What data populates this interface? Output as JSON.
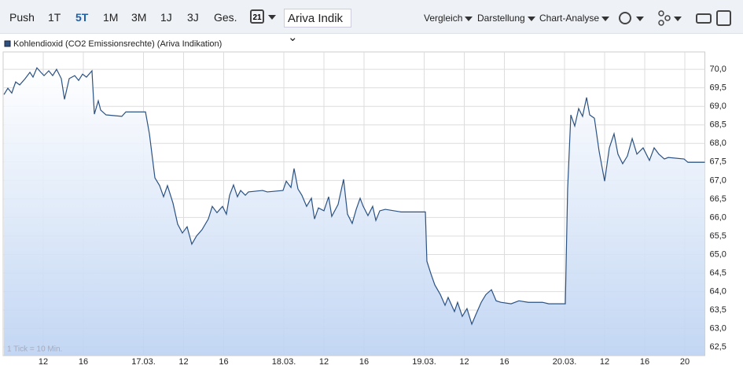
{
  "toolbar": {
    "ranges": [
      "Push",
      "1T",
      "5T",
      "1M",
      "3M",
      "1J",
      "3J",
      "Ges."
    ],
    "active_range": "5T",
    "calendar": "21",
    "source": "Ariva Indik",
    "menus": [
      "Vergleich",
      "Darstellung",
      "Chart-Analyse"
    ]
  },
  "chart_data": {
    "type": "line",
    "annotation": "1 Tick = 10 Min.",
    "x": [
      0.08,
      0.47,
      0.86,
      1.25,
      1.65,
      2.2,
      2.67,
      2.98,
      3.37,
      3.76,
      4.08,
      4.55,
      4.94,
      5.33,
      5.8,
      6.12,
      6.59,
      7.14,
      7.53,
      7.92,
      8.31,
      8.86,
      9.1,
      9.49,
      9.73,
      10.27,
      11.84,
      12.24,
      14.2,
      14.59,
      15.14,
      15.61,
      16,
      16.39,
      16.94,
      17.41,
      17.88,
      18.35,
      18.82,
      19.29,
      19.84,
      20.47,
      20.86,
      21.33,
      21.88,
      22.27,
      22.59,
      22.98,
      23.37,
      23.69,
      24.16,
      24.47,
      25.88,
      26.35,
      27.92,
      28.24,
      28.71,
      29.02,
      29.41,
      29.8,
      30.27,
      30.75,
      31.06,
      31.45,
      32,
      32.47,
      32.78,
      33.41,
      33.96,
      34.35,
      34.82,
      35.22,
      35.61,
      35.92,
      36.39,
      36.86,
      37.18,
      37.57,
      38.12,
      39.69,
      42.12,
      42.27,
      42.67,
      43.06,
      43.61,
      44.08,
      44.39,
      45.02,
      45.33,
      45.8,
      46.27,
      46.75,
      47.14,
      47.69,
      48.16,
      48.71,
      49.18,
      49.65,
      50.67,
      51.45,
      52.39,
      53.8,
      54.43,
      56.08,
      56.31,
      56.63,
      57.02,
      57.41,
      57.8,
      58.2,
      58.51,
      58.98,
      59.45,
      60,
      60.47,
      60.94,
      61.33,
      61.8,
      62.27,
      62.75,
      63.22,
      63.84,
      64.47,
      64.94,
      65.41,
      65.96,
      66.35,
      67.92,
      68.31,
      70
    ],
    "series": [
      {
        "name": "Kohlendioxid (CO2 Emissionsrechte) (Ariva Indikation)",
        "color": "#2b5283",
        "values": [
          69.32,
          69.49,
          69.36,
          69.66,
          69.58,
          69.75,
          69.92,
          69.79,
          70.04,
          69.92,
          69.83,
          69.96,
          69.83,
          70,
          69.75,
          69.19,
          69.75,
          69.83,
          69.7,
          69.87,
          69.79,
          69.96,
          68.79,
          69.15,
          68.9,
          68.77,
          68.73,
          68.85,
          68.85,
          68.26,
          67.07,
          66.86,
          66.56,
          66.86,
          66.39,
          65.82,
          65.58,
          65.75,
          65.28,
          65.5,
          65.67,
          65.96,
          66.3,
          66.13,
          66.3,
          66.09,
          66.6,
          66.88,
          66.56,
          66.73,
          66.6,
          66.69,
          66.73,
          66.69,
          66.73,
          66.98,
          66.81,
          67.32,
          66.77,
          66.6,
          66.3,
          66.52,
          65.96,
          66.26,
          66.18,
          66.56,
          66.03,
          66.35,
          67.03,
          66.09,
          65.84,
          66.22,
          66.52,
          66.3,
          66.05,
          66.3,
          65.92,
          66.18,
          66.22,
          66.15,
          66.15,
          64.82,
          64.48,
          64.18,
          63.92,
          63.63,
          63.84,
          63.46,
          63.71,
          63.33,
          63.54,
          63.12,
          63.37,
          63.71,
          63.92,
          64.05,
          63.75,
          63.71,
          63.67,
          63.75,
          63.71,
          63.71,
          63.67,
          63.67,
          66.77,
          68.77,
          68.47,
          68.94,
          68.73,
          69.24,
          68.77,
          68.68,
          67.79,
          66.98,
          67.88,
          68.26,
          67.71,
          67.45,
          67.66,
          68.13,
          67.71,
          67.88,
          67.54,
          67.88,
          67.71,
          67.58,
          67.62,
          67.58,
          67.49,
          67.49
        ]
      }
    ],
    "xlim": [
      0,
      70
    ],
    "xticks": [
      {
        "value": 4,
        "label": "12"
      },
      {
        "value": 8,
        "label": "16"
      },
      {
        "value": 14,
        "label": "17.03."
      },
      {
        "value": 18,
        "label": "12"
      },
      {
        "value": 22,
        "label": "16"
      },
      {
        "value": 28,
        "label": "18.03."
      },
      {
        "value": 32,
        "label": "12"
      },
      {
        "value": 36,
        "label": "16"
      },
      {
        "value": 42,
        "label": "19.03."
      },
      {
        "value": 46,
        "label": "12"
      },
      {
        "value": 50,
        "label": "16"
      },
      {
        "value": 56,
        "label": "20.03."
      },
      {
        "value": 60,
        "label": "12"
      },
      {
        "value": 64,
        "label": "16"
      },
      {
        "value": 68,
        "label": "20"
      }
    ],
    "ylim": [
      62.27,
      70.47
    ],
    "yticks": [
      {
        "value": 62.5,
        "label": "62,5"
      },
      {
        "value": 63,
        "label": "63,0"
      },
      {
        "value": 63.5,
        "label": "63,5"
      },
      {
        "value": 64,
        "label": "64,0"
      },
      {
        "value": 64.5,
        "label": "64,5"
      },
      {
        "value": 65,
        "label": "65,0"
      },
      {
        "value": 65.5,
        "label": "65,5"
      },
      {
        "value": 66,
        "label": "66,0"
      },
      {
        "value": 66.5,
        "label": "66,5"
      },
      {
        "value": 67,
        "label": "67,0"
      },
      {
        "value": 67.5,
        "label": "67,5"
      },
      {
        "value": 68,
        "label": "68,0"
      },
      {
        "value": 68.5,
        "label": "68,5"
      },
      {
        "value": 69,
        "label": "69,0"
      },
      {
        "value": 69.5,
        "label": "69,5"
      },
      {
        "value": 70,
        "label": "70,0"
      }
    ],
    "grid": true
  }
}
